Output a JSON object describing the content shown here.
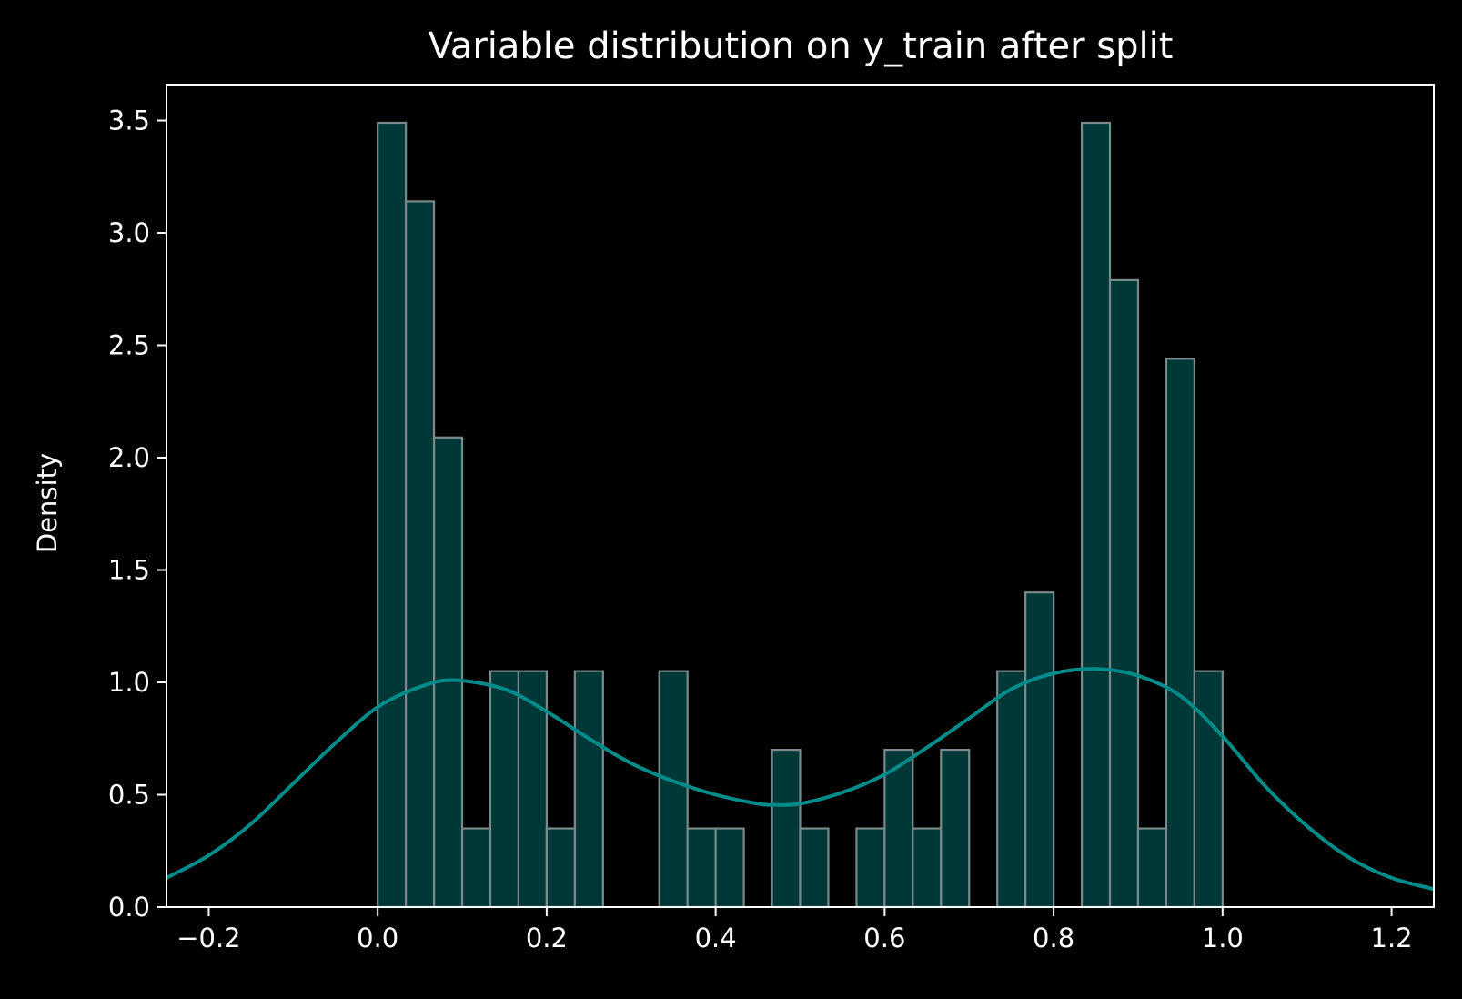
{
  "chart_data": {
    "type": "bar",
    "subtype": "histogram-with-kde",
    "title": "Variable distribution on y_train after split",
    "xlabel": "",
    "ylabel": "Density",
    "xlim": [
      -0.25,
      1.25
    ],
    "ylim": [
      0,
      3.66
    ],
    "xticks": [
      -0.2,
      0.0,
      0.2,
      0.4,
      0.6,
      0.8,
      1.0,
      1.2
    ],
    "xtick_labels": [
      "−0.2",
      "0.0",
      "0.2",
      "0.4",
      "0.6",
      "0.8",
      "1.0",
      "1.2"
    ],
    "yticks": [
      0.0,
      0.5,
      1.0,
      1.5,
      2.0,
      2.5,
      3.0,
      3.5
    ],
    "ytick_labels": [
      "0.0",
      "0.5",
      "1.0",
      "1.5",
      "2.0",
      "2.5",
      "3.0",
      "3.5"
    ],
    "grid": false,
    "legend": "none",
    "histogram": {
      "range": [
        0.0,
        1.0
      ],
      "bins": 30,
      "densities": [
        3.49,
        3.14,
        2.09,
        0.35,
        1.05,
        1.05,
        0.35,
        1.05,
        0,
        0,
        1.05,
        0.35,
        0.35,
        0,
        0.7,
        0.35,
        0,
        0.35,
        0.7,
        0.35,
        0.7,
        0,
        1.05,
        1.4,
        0,
        3.49,
        2.79,
        0.35,
        2.44,
        1.05
      ]
    },
    "kde": {
      "x": [
        -0.25,
        -0.2,
        -0.15,
        -0.1,
        -0.05,
        0.0,
        0.05,
        0.09,
        0.15,
        0.2,
        0.25,
        0.3,
        0.35,
        0.4,
        0.45,
        0.47,
        0.5,
        0.55,
        0.6,
        0.65,
        0.7,
        0.75,
        0.8,
        0.85,
        0.9,
        0.95,
        1.0,
        1.05,
        1.1,
        1.15,
        1.2,
        1.25
      ],
      "y": [
        0.13,
        0.23,
        0.37,
        0.55,
        0.73,
        0.89,
        0.98,
        1.01,
        0.97,
        0.87,
        0.75,
        0.64,
        0.56,
        0.5,
        0.46,
        0.455,
        0.46,
        0.51,
        0.59,
        0.71,
        0.84,
        0.97,
        1.04,
        1.06,
        1.03,
        0.94,
        0.76,
        0.54,
        0.36,
        0.22,
        0.13,
        0.08
      ]
    },
    "colors": {
      "background": "#000000",
      "bar_fill": "#003838",
      "bar_edge": "#7a8a8a",
      "kde_line": "#008b8b",
      "axes": "#ffffff",
      "text": "#ffffff"
    }
  }
}
